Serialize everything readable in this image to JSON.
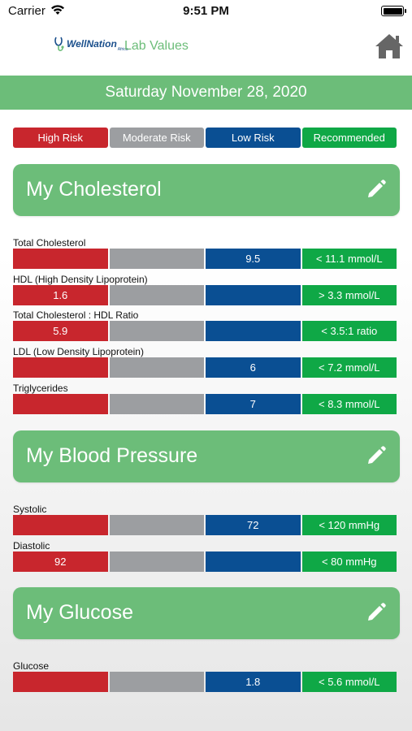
{
  "status_bar": {
    "carrier": "Carrier",
    "time": "9:51 PM"
  },
  "header": {
    "logo_text": "WellNation",
    "logo_sub": "Africa",
    "title": "Lab Values"
  },
  "date": "Saturday November 28, 2020",
  "legend": {
    "high": "High Risk",
    "moderate": "Moderate Risk",
    "low": "Low Risk",
    "recommended": "Recommended"
  },
  "colors": {
    "high": "#c8262d",
    "moderate": "#9c9ea1",
    "low": "#0a4f93",
    "recommended": "#0fa846",
    "accent": "#6cbd79"
  },
  "sections": {
    "cholesterol": {
      "title": "My Cholesterol",
      "metrics": [
        {
          "label": "Total Cholesterol",
          "high": "",
          "moderate": "",
          "low": "9.5",
          "recommended": "< 11.1 mmol/L"
        },
        {
          "label": "HDL (High Density Lipoprotein)",
          "high": "1.6",
          "moderate": "",
          "low": "",
          "recommended": "> 3.3 mmol/L"
        },
        {
          "label": "Total Cholesterol : HDL Ratio",
          "high": "5.9",
          "moderate": "",
          "low": "",
          "recommended": "< 3.5:1 ratio"
        },
        {
          "label": "LDL (Low Density Lipoprotein)",
          "high": "",
          "moderate": "",
          "low": "6",
          "recommended": "< 7.2 mmol/L"
        },
        {
          "label": "Triglycerides",
          "high": "",
          "moderate": "",
          "low": "7",
          "recommended": "< 8.3 mmol/L"
        }
      ]
    },
    "blood_pressure": {
      "title": "My Blood Pressure",
      "metrics": [
        {
          "label": "Systolic",
          "high": "",
          "moderate": "",
          "low": "72",
          "recommended": "< 120 mmHg"
        },
        {
          "label": "Diastolic",
          "high": "92",
          "moderate": "",
          "low": "",
          "recommended": "< 80 mmHg"
        }
      ]
    },
    "glucose": {
      "title": "My Glucose",
      "metrics": [
        {
          "label": "Glucose",
          "high": "",
          "moderate": "",
          "low": "1.8",
          "recommended": "< 5.6 mmol/L"
        }
      ]
    }
  }
}
